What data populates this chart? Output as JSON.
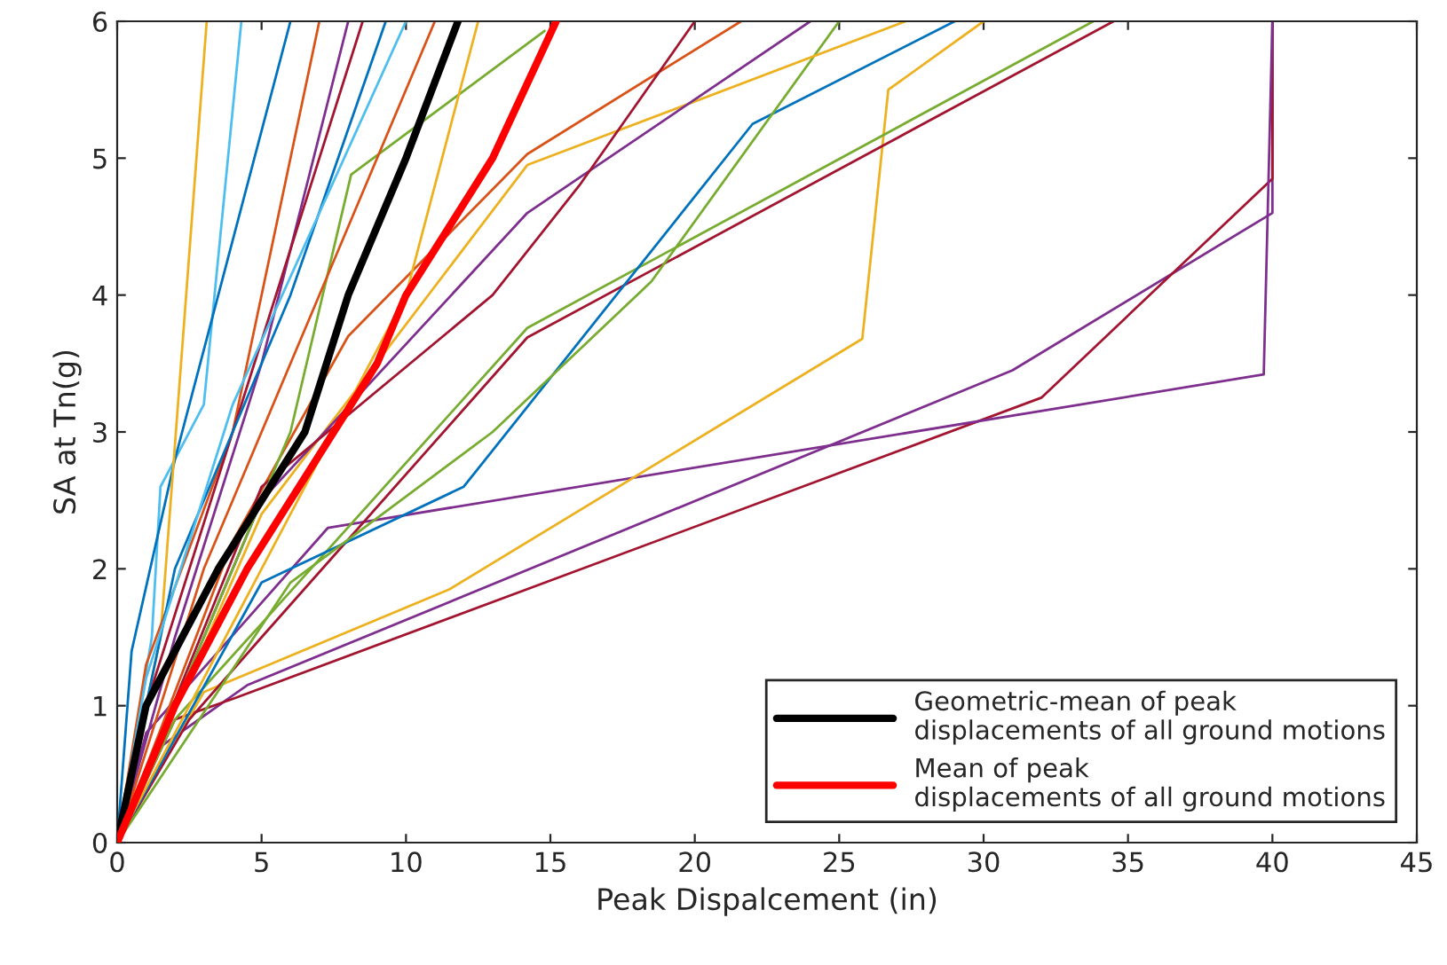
{
  "chart_data": {
    "type": "line",
    "xlabel": "Peak Dispalcement (in)",
    "ylabel": "SA at Tn(g)",
    "xlim": [
      0,
      45
    ],
    "ylim": [
      0,
      6
    ],
    "xticks": [
      0,
      5,
      10,
      15,
      20,
      25,
      30,
      35,
      40,
      45
    ],
    "yticks": [
      0,
      1,
      2,
      3,
      4,
      5,
      6
    ],
    "grid": false,
    "legend": "bottom right",
    "marker": "none",
    "line_style": "solid",
    "series": [
      {
        "color": "#7e2f8e",
        "x": [
          0,
          1.5,
          4.5,
          31,
          40,
          40
        ],
        "values": [
          0,
          0.7,
          1.15,
          3.45,
          4.6,
          6
        ]
      },
      {
        "color": "#a2142f",
        "x": [
          0,
          2,
          4,
          32,
          40,
          40
        ],
        "values": [
          0,
          0.9,
          1.05,
          3.25,
          4.85,
          6
        ]
      },
      {
        "color": "#7e2f8e",
        "x": [
          0,
          1,
          7.3,
          39.7,
          40
        ],
        "values": [
          0,
          0.8,
          2.3,
          3.42,
          6
        ]
      },
      {
        "color": "#edb120",
        "x": [
          0,
          3,
          11.5,
          25.8,
          26.7,
          30
        ],
        "values": [
          0,
          1.1,
          1.85,
          3.68,
          5.5,
          6
        ]
      },
      {
        "color": "#77ac30",
        "x": [
          0,
          2,
          5,
          14.2,
          33.8
        ],
        "values": [
          0,
          0.9,
          1.6,
          3.76,
          6
        ]
      },
      {
        "color": "#a2142f",
        "x": [
          0,
          2.5,
          5,
          14.2,
          34.5
        ],
        "values": [
          0,
          0.9,
          1.5,
          3.69,
          6
        ]
      },
      {
        "color": "#0072bd",
        "x": [
          0,
          5,
          12,
          22,
          29
        ],
        "values": [
          0,
          1.9,
          2.6,
          5.25,
          6
        ]
      },
      {
        "color": "#77ac30",
        "x": [
          0,
          6,
          13,
          18.5,
          25
        ],
        "values": [
          0,
          1.9,
          3.0,
          4.1,
          6
        ]
      },
      {
        "color": "#edb120",
        "x": [
          0,
          5,
          14.2,
          27.3
        ],
        "values": [
          0,
          2.4,
          4.95,
          6
        ]
      },
      {
        "color": "#d95319",
        "x": [
          0,
          4,
          8,
          14.2,
          21.6
        ],
        "values": [
          0,
          2.2,
          3.7,
          5.03,
          6
        ]
      },
      {
        "color": "#7e2f8e",
        "x": [
          0,
          5,
          14.2,
          24
        ],
        "values": [
          0,
          2.5,
          4.6,
          6
        ]
      },
      {
        "color": "#a2142f",
        "x": [
          0,
          5,
          13,
          16,
          20
        ],
        "values": [
          0,
          2.6,
          4.0,
          4.8,
          6
        ]
      },
      {
        "color": "#77ac30",
        "x": [
          0,
          2,
          6,
          8.1,
          14.8
        ],
        "values": [
          0,
          1.0,
          3.0,
          4.88,
          5.93
        ]
      },
      {
        "color": "#4dbeee",
        "x": [
          0,
          1.2,
          1.5,
          3,
          4.3
        ],
        "values": [
          0,
          1.5,
          2.6,
          3.2,
          6
        ]
      },
      {
        "color": "#0072bd",
        "x": [
          0,
          0.5,
          2,
          6
        ],
        "values": [
          0,
          1.4,
          2.8,
          6
        ]
      },
      {
        "color": "#edb120",
        "x": [
          0,
          1.5,
          3.1
        ],
        "values": [
          0,
          1.5,
          6
        ]
      },
      {
        "color": "#d95319",
        "x": [
          0,
          1,
          4,
          7
        ],
        "values": [
          0,
          1.3,
          3,
          6
        ]
      },
      {
        "color": "#7e2f8e",
        "x": [
          0,
          2,
          5,
          8
        ],
        "values": [
          0,
          1.5,
          3.5,
          6
        ]
      },
      {
        "color": "#a2142f",
        "x": [
          0,
          1,
          4,
          8.5
        ],
        "values": [
          0,
          1,
          3,
          6
        ]
      },
      {
        "color": "#0072bd",
        "x": [
          0,
          2,
          6,
          9.3
        ],
        "values": [
          0,
          2,
          4,
          6
        ]
      },
      {
        "color": "#4dbeee",
        "x": [
          0,
          1,
          4,
          10
        ],
        "values": [
          0,
          1.2,
          3.2,
          6
        ]
      },
      {
        "color": "#d95319",
        "x": [
          0,
          3,
          8,
          11
        ],
        "values": [
          0,
          2,
          4.5,
          6
        ]
      },
      {
        "color": "#edb120",
        "x": [
          0,
          5,
          10,
          12.5
        ],
        "values": [
          0,
          2,
          4,
          6
        ]
      },
      {
        "name": "Geometric-mean of peak\ndisplacements of all ground motions",
        "color": "#000000",
        "x": [
          0,
          1,
          3.5,
          6.5,
          8,
          10,
          11.8
        ],
        "values": [
          0,
          1,
          2,
          3,
          4,
          5,
          6
        ]
      },
      {
        "name": "Mean of peak\ndisplacements of all ground motions",
        "color": "#ff0000",
        "x": [
          0,
          2,
          4.5,
          7.5,
          9,
          10,
          13,
          15.2
        ],
        "values": [
          0,
          1,
          2,
          3,
          3.5,
          4,
          5,
          6
        ]
      }
    ]
  }
}
